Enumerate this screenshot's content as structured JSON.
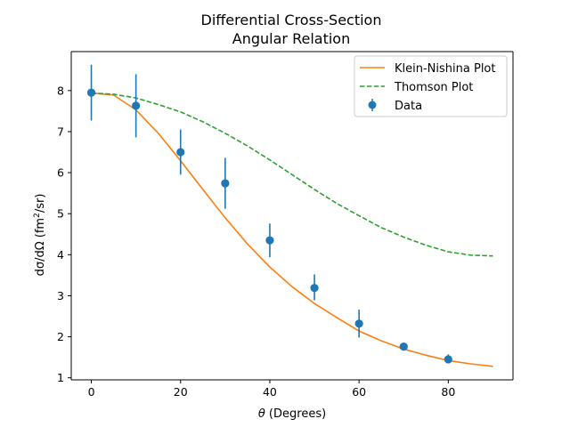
{
  "chart_data": {
    "type": "scatter",
    "title": "Differential Cross-Section",
    "subtitle": "Angular Relation",
    "xlabel_symbol": "θ",
    "xlabel_unit": " (Degrees)",
    "ylabel_num": "dσ/dΩ (fm",
    "ylabel_sup": "2",
    "ylabel_end": "/sr)",
    "xlim": [
      -4.5,
      94.5
    ],
    "ylim": [
      0.95,
      8.95
    ],
    "xticks": [
      0,
      20,
      40,
      60,
      80
    ],
    "yticks": [
      1,
      2,
      3,
      4,
      5,
      6,
      7,
      8
    ],
    "grid": false,
    "legend_position": "top-right",
    "series": [
      {
        "name": "Klein-Nishina Plot",
        "kind": "line",
        "style": "solid",
        "color": "#ff7f0e",
        "x": [
          0,
          5,
          10,
          15,
          20,
          25,
          30,
          35,
          40,
          45,
          50,
          55,
          60,
          65,
          70,
          75,
          80,
          85,
          90
        ],
        "y": [
          7.94,
          7.89,
          7.53,
          6.96,
          6.29,
          5.59,
          4.9,
          4.26,
          3.7,
          3.22,
          2.81,
          2.47,
          2.14,
          1.9,
          1.7,
          1.55,
          1.42,
          1.34,
          1.28
        ]
      },
      {
        "name": "Thomson Plot",
        "kind": "line",
        "style": "dashed",
        "color": "#2ca02c",
        "x": [
          0,
          5,
          10,
          15,
          20,
          25,
          30,
          35,
          40,
          45,
          50,
          55,
          60,
          65,
          70,
          75,
          80,
          85,
          90
        ],
        "y": [
          7.94,
          7.91,
          7.82,
          7.66,
          7.48,
          7.24,
          6.96,
          6.65,
          6.31,
          5.95,
          5.59,
          5.25,
          4.95,
          4.66,
          4.43,
          4.23,
          4.07,
          3.99,
          3.97
        ]
      },
      {
        "name": "Data",
        "kind": "errorbar",
        "color": "#1f77b4",
        "x": [
          0,
          10,
          20,
          30,
          40,
          50,
          60,
          70,
          80
        ],
        "y": [
          7.95,
          7.63,
          6.5,
          5.74,
          4.35,
          3.19,
          2.32,
          1.76,
          1.45
        ],
        "yerr_low": [
          0.68,
          0.77,
          0.55,
          0.62,
          0.41,
          0.3,
          0.34,
          0.05,
          0.09
        ],
        "yerr_high": [
          0.68,
          0.77,
          0.55,
          0.62,
          0.41,
          0.33,
          0.34,
          0.05,
          0.12
        ]
      }
    ]
  }
}
